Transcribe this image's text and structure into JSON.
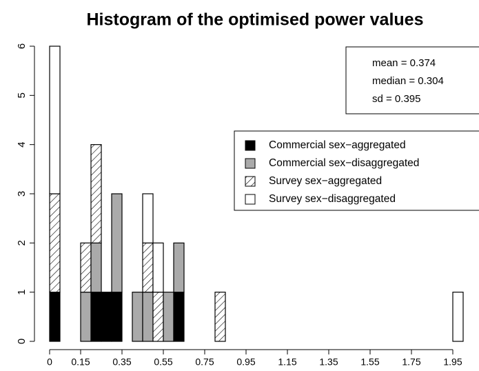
{
  "chart_data": {
    "type": "stacked_histogram",
    "title": "Histogram of the optimised power values",
    "bins": [
      0,
      0.05,
      0.1,
      0.15,
      0.2,
      0.25,
      0.3,
      0.35,
      0.4,
      0.45,
      0.5,
      0.55,
      0.6,
      0.65,
      0.7,
      0.75,
      0.8,
      0.85,
      0.9,
      0.95,
      1,
      1.05,
      1.1,
      1.15,
      1.2,
      1.25,
      1.3,
      1.35,
      1.4,
      1.45,
      1.5,
      1.55,
      1.6,
      1.65,
      1.7,
      1.75,
      1.8,
      1.85,
      1.9,
      1.95,
      2
    ],
    "series": [
      {
        "name": "Commercial sex−aggregated",
        "color": "#000000",
        "values": [
          1,
          0,
          0,
          0,
          1,
          1,
          1,
          0,
          0,
          0,
          0,
          0,
          1,
          0,
          0,
          0,
          0,
          0,
          0,
          0,
          0,
          0,
          0,
          0,
          0,
          0,
          0,
          0,
          0,
          0,
          0,
          0,
          0,
          0,
          0,
          0,
          0,
          0,
          0,
          0
        ]
      },
      {
        "name": "Commercial sex−disaggregated",
        "color": "#aaaaaa",
        "values": [
          0,
          0,
          0,
          1,
          1,
          0,
          2,
          0,
          1,
          1,
          0,
          1,
          1,
          0,
          0,
          0,
          0,
          0,
          0,
          0,
          0,
          0,
          0,
          0,
          0,
          0,
          0,
          0,
          0,
          0,
          0,
          0,
          0,
          0,
          0,
          0,
          0,
          0,
          0,
          0
        ]
      },
      {
        "name": "Survey sex−aggregated",
        "color": "hatch",
        "values": [
          2,
          0,
          0,
          1,
          2,
          0,
          0,
          0,
          0,
          1,
          1,
          0,
          0,
          0,
          0,
          0,
          1,
          0,
          0,
          0,
          0,
          0,
          0,
          0,
          0,
          0,
          0,
          0,
          0,
          0,
          0,
          0,
          0,
          0,
          0,
          0,
          0,
          0,
          0,
          0
        ]
      },
      {
        "name": "Survey sex−disaggregated",
        "color": "#ffffff",
        "values": [
          3,
          0,
          0,
          0,
          0,
          0,
          0,
          0,
          0,
          1,
          1,
          0,
          0,
          0,
          0,
          0,
          0,
          0,
          0,
          0,
          0,
          0,
          0,
          0,
          0,
          0,
          0,
          0,
          0,
          0,
          0,
          0,
          0,
          0,
          0,
          0,
          0,
          0,
          0,
          1
        ]
      }
    ],
    "xlim": [
      0,
      2
    ],
    "xticks": [
      0,
      0.15,
      0.35,
      0.55,
      0.75,
      0.95,
      1.15,
      1.35,
      1.55,
      1.75,
      1.95
    ],
    "ylim": [
      0,
      6
    ],
    "yticks": [
      0,
      1,
      2,
      3,
      4,
      5,
      6
    ],
    "annotations": [
      "mean = 0.374",
      "median = 0.304",
      "sd = 0.395"
    ],
    "legend": "upper right"
  }
}
